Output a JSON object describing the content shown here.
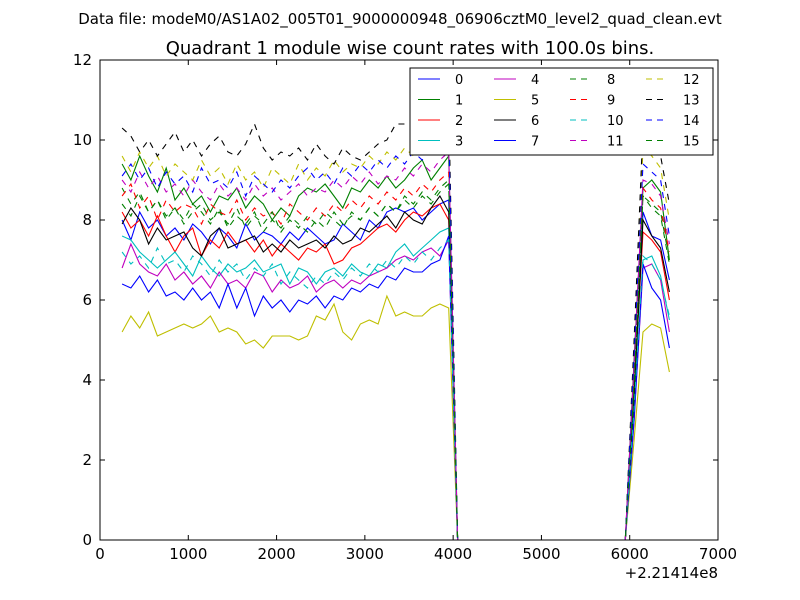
{
  "chart_data": {
    "type": "line",
    "suptitle": "Data file: modeM0/AS1A02_005T01_9000000948_06906cztM0_level2_quad_clean.evt",
    "title": "Quadrant 1 module wise count rates with 100.0s bins.",
    "xlabel": "",
    "ylabel": "",
    "x_offset_label": "+2.21414e8",
    "xlim": [
      0,
      7000
    ],
    "ylim": [
      0,
      12
    ],
    "xticks": [
      "0",
      "1000",
      "2000",
      "3000",
      "4000",
      "5000",
      "6000",
      "7000"
    ],
    "yticks": [
      "0",
      "2",
      "4",
      "6",
      "8",
      "10",
      "12"
    ],
    "grid": false,
    "legend_position": "top-right",
    "x": [
      250,
      350,
      450,
      550,
      650,
      750,
      850,
      950,
      1050,
      1150,
      1250,
      1350,
      1450,
      1550,
      1650,
      1750,
      1850,
      1950,
      2050,
      2150,
      2250,
      2350,
      2450,
      2550,
      2650,
      2750,
      2850,
      2950,
      3050,
      3150,
      3250,
      3350,
      3450,
      3550,
      3650,
      3750,
      3850,
      3950,
      4050,
      4150,
      4250,
      4350,
      4450,
      4550,
      4650,
      4750,
      4850,
      4950,
      5050,
      5150,
      5250,
      5350,
      5450,
      5550,
      5650,
      5750,
      5850,
      5950,
      6050,
      6150,
      6250,
      6350,
      6450
    ],
    "series": [
      {
        "name": "0",
        "color": "#0000ff",
        "dash": "solid",
        "values": [
          8.0,
          7.5,
          8.2,
          7.8,
          8.0,
          7.6,
          7.8,
          7.5,
          7.9,
          7.7,
          7.4,
          7.8,
          7.6,
          7.3,
          7.9,
          7.5,
          7.7,
          7.6,
          7.4,
          7.7,
          7.5,
          7.8,
          7.6,
          7.4,
          7.5,
          7.9,
          7.7,
          7.5,
          8.0,
          7.8,
          8.2,
          8.3,
          8.2,
          8.3,
          8.0,
          8.2,
          8.4,
          8.5,
          0,
          0,
          0,
          0,
          0,
          0,
          0,
          0,
          0,
          0,
          0,
          0,
          0,
          0,
          0,
          0,
          0,
          0,
          0,
          0,
          3.5,
          8.2,
          7.6,
          7.5,
          6.5
        ]
      },
      {
        "name": "1",
        "color": "#008000",
        "dash": "solid",
        "values": [
          9.4,
          9.0,
          9.6,
          9.1,
          8.7,
          9.3,
          8.5,
          8.8,
          8.4,
          8.6,
          8.2,
          8.6,
          8.5,
          8.8,
          8.3,
          8.6,
          8.4,
          8.0,
          8.3,
          8.1,
          8.6,
          8.8,
          8.7,
          8.9,
          8.6,
          8.3,
          8.8,
          8.7,
          9.0,
          8.8,
          9.1,
          8.8,
          9.0,
          9.3,
          9.5,
          9.0,
          9.3,
          9.6,
          0,
          0,
          0,
          0,
          0,
          0,
          0,
          0,
          0,
          0,
          0,
          0,
          0,
          0,
          0,
          0,
          0,
          0,
          0,
          0,
          4.5,
          8.8,
          9.0,
          8.7,
          7.0
        ]
      },
      {
        "name": "2",
        "color": "#ff0000",
        "dash": "solid",
        "values": [
          8.2,
          7.8,
          8.0,
          7.6,
          8.1,
          7.6,
          7.2,
          7.6,
          7.8,
          7.1,
          7.5,
          7.3,
          7.7,
          7.4,
          7.5,
          7.2,
          7.5,
          7.1,
          7.4,
          7.2,
          7.0,
          7.3,
          7.2,
          7.4,
          6.9,
          7.0,
          7.3,
          7.4,
          7.6,
          7.8,
          7.9,
          7.7,
          8.0,
          8.2,
          8.1,
          8.3,
          8.4,
          8.0,
          0,
          0,
          0,
          0,
          0,
          0,
          0,
          0,
          0,
          0,
          0,
          0,
          0,
          0,
          0,
          0,
          0,
          0,
          0,
          0,
          3.8,
          7.7,
          7.5,
          7.2,
          6.0
        ]
      },
      {
        "name": "3",
        "color": "#00bfbf",
        "dash": "solid",
        "values": [
          7.6,
          7.5,
          7.2,
          7.0,
          6.8,
          7.0,
          7.2,
          6.9,
          6.6,
          7.1,
          6.8,
          6.6,
          6.9,
          6.7,
          6.8,
          7.0,
          6.7,
          6.8,
          6.9,
          6.4,
          6.8,
          6.7,
          6.4,
          6.7,
          6.8,
          6.6,
          6.9,
          6.7,
          6.6,
          6.9,
          6.8,
          7.2,
          7.4,
          7.1,
          7.3,
          7.5,
          7.7,
          7.8,
          0,
          0,
          0,
          0,
          0,
          0,
          0,
          0,
          0,
          0,
          0,
          0,
          0,
          0,
          0,
          0,
          0,
          0,
          0,
          0,
          3.2,
          7.0,
          7.1,
          6.6,
          5.5
        ]
      },
      {
        "name": "4",
        "color": "#bf00bf",
        "dash": "solid",
        "values": [
          6.8,
          7.4,
          6.9,
          6.7,
          6.6,
          6.9,
          6.5,
          6.7,
          6.4,
          6.6,
          6.3,
          6.7,
          6.4,
          6.5,
          6.3,
          6.7,
          6.6,
          6.2,
          6.5,
          6.3,
          6.4,
          6.6,
          6.2,
          6.4,
          6.5,
          6.3,
          6.5,
          6.4,
          6.6,
          6.7,
          6.8,
          7.0,
          7.1,
          7.0,
          7.2,
          7.3,
          7.1,
          7.5,
          0,
          0,
          0,
          0,
          0,
          0,
          0,
          0,
          0,
          0,
          0,
          0,
          0,
          0,
          0,
          0,
          0,
          0,
          0,
          0,
          3.0,
          6.8,
          6.9,
          6.5,
          5.2
        ]
      },
      {
        "name": "5",
        "color": "#bfbf00",
        "dash": "solid",
        "values": [
          5.2,
          5.6,
          5.3,
          5.7,
          5.1,
          5.2,
          5.3,
          5.4,
          5.3,
          5.4,
          5.6,
          5.2,
          5.3,
          5.2,
          4.9,
          5.0,
          4.8,
          5.1,
          5.1,
          5.1,
          5.0,
          5.1,
          5.6,
          5.5,
          5.9,
          5.2,
          5.0,
          5.4,
          5.5,
          5.4,
          6.1,
          5.6,
          5.7,
          5.6,
          5.6,
          5.8,
          5.9,
          5.8,
          0,
          0,
          0,
          0,
          0,
          0,
          0,
          0,
          0,
          0,
          0,
          0,
          0,
          0,
          0,
          0,
          0,
          0,
          0,
          0,
          2.5,
          5.2,
          5.4,
          5.3,
          4.2
        ]
      },
      {
        "name": "6",
        "color": "#000000",
        "dash": "solid",
        "values": [
          7.9,
          8.3,
          8.0,
          7.4,
          7.8,
          7.5,
          7.6,
          7.7,
          7.3,
          7.1,
          7.6,
          7.8,
          7.3,
          7.4,
          7.5,
          7.6,
          7.2,
          7.4,
          7.2,
          7.5,
          7.3,
          7.4,
          7.5,
          7.3,
          7.6,
          7.4,
          7.5,
          7.8,
          7.7,
          7.9,
          8.1,
          7.8,
          8.2,
          8.0,
          7.9,
          8.3,
          8.6,
          8.2,
          0,
          0,
          0,
          0,
          0,
          0,
          0,
          0,
          0,
          0,
          0,
          0,
          0,
          0,
          0,
          0,
          0,
          0,
          0,
          0,
          3.6,
          8.0,
          7.6,
          7.3,
          6.2
        ]
      },
      {
        "name": "7",
        "color": "#0000ff",
        "dash": "solid",
        "values": [
          6.4,
          6.3,
          6.6,
          6.2,
          6.5,
          6.1,
          6.2,
          6.0,
          6.3,
          6.0,
          6.2,
          5.8,
          6.4,
          5.8,
          6.3,
          5.6,
          6.1,
          5.8,
          6.0,
          5.7,
          6.0,
          5.9,
          6.1,
          5.8,
          6.1,
          6.0,
          6.3,
          6.2,
          6.4,
          6.3,
          6.6,
          6.5,
          6.8,
          6.7,
          6.7,
          6.9,
          7.0,
          7.6,
          0,
          0,
          0,
          0,
          0,
          0,
          0,
          0,
          0,
          0,
          0,
          0,
          0,
          0,
          0,
          0,
          0,
          0,
          0,
          0,
          3.0,
          6.9,
          6.3,
          6.0,
          4.8
        ]
      },
      {
        "name": "8",
        "color": "#008000",
        "dash": "dashed",
        "values": [
          8.8,
          8.4,
          8.7,
          8.2,
          8.5,
          8.1,
          8.3,
          8.0,
          8.4,
          8.2,
          7.9,
          8.3,
          7.8,
          8.1,
          7.9,
          8.2,
          7.7,
          8.0,
          7.8,
          8.1,
          7.9,
          7.7,
          8.0,
          7.8,
          8.2,
          7.9,
          8.1,
          8.0,
          8.3,
          8.1,
          8.4,
          8.2,
          8.5,
          8.3,
          8.6,
          8.4,
          8.7,
          8.9,
          0,
          0,
          0,
          0,
          0,
          0,
          0,
          0,
          0,
          0,
          0,
          0,
          0,
          0,
          0,
          0,
          0,
          0,
          0,
          0,
          4.0,
          8.6,
          8.4,
          8.2,
          7.0
        ]
      },
      {
        "name": "9",
        "color": "#ff0000",
        "dash": "dashed",
        "values": [
          8.6,
          8.9,
          8.3,
          8.6,
          8.0,
          8.5,
          8.2,
          8.4,
          8.3,
          7.9,
          8.4,
          8.2,
          8.1,
          8.5,
          8.0,
          8.3,
          8.1,
          8.2,
          7.9,
          8.4,
          8.2,
          8.0,
          8.3,
          8.1,
          8.4,
          8.2,
          8.5,
          8.3,
          8.6,
          8.4,
          8.7,
          8.5,
          8.8,
          8.6,
          8.9,
          8.7,
          9.0,
          9.2,
          0,
          0,
          0,
          0,
          0,
          0,
          0,
          0,
          0,
          0,
          0,
          0,
          0,
          0,
          0,
          0,
          0,
          0,
          0,
          0,
          4.2,
          8.8,
          8.5,
          8.3,
          7.2
        ]
      },
      {
        "name": "10",
        "color": "#00bfbf",
        "dash": "dashed",
        "values": [
          7.2,
          6.9,
          7.1,
          6.8,
          7.3,
          6.9,
          7.0,
          6.7,
          7.1,
          6.9,
          6.6,
          7.0,
          6.7,
          6.9,
          6.5,
          6.8,
          6.6,
          6.9,
          6.4,
          6.7,
          6.5,
          6.3,
          6.6,
          6.4,
          6.7,
          6.5,
          6.8,
          6.6,
          6.9,
          6.7,
          7.0,
          6.8,
          7.1,
          6.9,
          7.2,
          7.0,
          7.3,
          7.5,
          0,
          0,
          0,
          0,
          0,
          0,
          0,
          0,
          0,
          0,
          0,
          0,
          0,
          0,
          0,
          0,
          0,
          0,
          0,
          0,
          3.3,
          7.1,
          6.9,
          6.5,
          5.6
        ]
      },
      {
        "name": "11",
        "color": "#bf00bf",
        "dash": "dashed",
        "values": [
          9.0,
          8.7,
          9.2,
          8.8,
          9.1,
          8.7,
          8.9,
          8.6,
          9.0,
          8.7,
          8.5,
          8.9,
          8.6,
          8.8,
          8.5,
          8.9,
          8.6,
          8.8,
          8.5,
          8.7,
          8.9,
          8.6,
          8.8,
          8.7,
          9.0,
          8.8,
          9.1,
          8.9,
          9.2,
          8.9,
          9.1,
          9.0,
          9.3,
          9.1,
          9.4,
          9.2,
          9.5,
          9.7,
          0,
          0,
          0,
          0,
          0,
          0,
          0,
          0,
          0,
          0,
          0,
          0,
          0,
          0,
          0,
          0,
          0,
          0,
          0,
          0,
          4.4,
          9.0,
          8.9,
          8.6,
          7.4
        ]
      },
      {
        "name": "12",
        "color": "#bfbf00",
        "dash": "dashed",
        "values": [
          9.6,
          9.2,
          9.7,
          9.3,
          9.6,
          9.1,
          9.4,
          9.2,
          9.0,
          9.5,
          9.1,
          9.3,
          8.9,
          9.4,
          9.0,
          9.2,
          8.8,
          9.3,
          9.1,
          8.9,
          9.4,
          9.0,
          9.3,
          9.1,
          9.5,
          9.2,
          9.4,
          9.3,
          9.6,
          9.4,
          9.7,
          9.5,
          9.8,
          9.6,
          9.7,
          9.9,
          10.1,
          10.3,
          0,
          0,
          0,
          0,
          0,
          0,
          0,
          0,
          0,
          0,
          0,
          0,
          0,
          0,
          0,
          0,
          0,
          0,
          0,
          0,
          4.8,
          9.8,
          9.6,
          9.3,
          8.0
        ]
      },
      {
        "name": "13",
        "color": "#000000",
        "dash": "dashed",
        "values": [
          10.3,
          10.1,
          9.7,
          10.0,
          9.6,
          9.9,
          10.2,
          9.7,
          10.0,
          9.6,
          9.9,
          10.1,
          9.7,
          9.6,
          9.9,
          10.4,
          9.8,
          9.5,
          9.7,
          9.6,
          9.8,
          9.5,
          9.9,
          9.6,
          9.4,
          9.8,
          9.6,
          9.5,
          9.7,
          9.9,
          10.0,
          10.4,
          10.4,
          10.3,
          10.5,
          10.4,
          10.7,
          10.9,
          0,
          0,
          0,
          0,
          0,
          0,
          0,
          0,
          0,
          0,
          0,
          0,
          0,
          0,
          0,
          0,
          0,
          0,
          0,
          0,
          5.0,
          10.3,
          10.0,
          9.6,
          8.4
        ]
      },
      {
        "name": "14",
        "color": "#0000ff",
        "dash": "dashed",
        "values": [
          9.1,
          9.4,
          9.0,
          9.3,
          8.8,
          9.2,
          8.9,
          9.1,
          8.7,
          9.3,
          8.9,
          9.0,
          8.8,
          9.2,
          8.6,
          9.1,
          8.9,
          8.7,
          9.0,
          8.8,
          9.1,
          9.3,
          9.0,
          9.2,
          8.9,
          9.3,
          9.1,
          9.4,
          9.2,
          9.5,
          9.3,
          9.6,
          9.4,
          9.7,
          9.5,
          9.8,
          10.0,
          10.2,
          0,
          0,
          0,
          0,
          0,
          0,
          0,
          0,
          0,
          0,
          0,
          0,
          0,
          0,
          0,
          0,
          0,
          0,
          0,
          0,
          4.6,
          9.4,
          9.2,
          9.0,
          7.6
        ]
      },
      {
        "name": "15",
        "color": "#008000",
        "dash": "dashed",
        "values": [
          8.4,
          8.1,
          8.6,
          8.2,
          8.5,
          8.0,
          8.3,
          7.9,
          8.2,
          8.4,
          8.0,
          8.2,
          7.9,
          8.3,
          7.8,
          8.1,
          7.9,
          8.2,
          7.7,
          8.0,
          7.8,
          8.1,
          7.9,
          8.2,
          8.0,
          7.8,
          8.2,
          8.0,
          8.3,
          8.1,
          8.4,
          8.2,
          8.6,
          8.4,
          8.7,
          8.5,
          8.8,
          9.0,
          0,
          0,
          0,
          0,
          0,
          0,
          0,
          0,
          0,
          0,
          0,
          0,
          0,
          0,
          0,
          0,
          0,
          0,
          0,
          0,
          3.9,
          8.6,
          8.3,
          8.1,
          6.9
        ]
      }
    ]
  }
}
